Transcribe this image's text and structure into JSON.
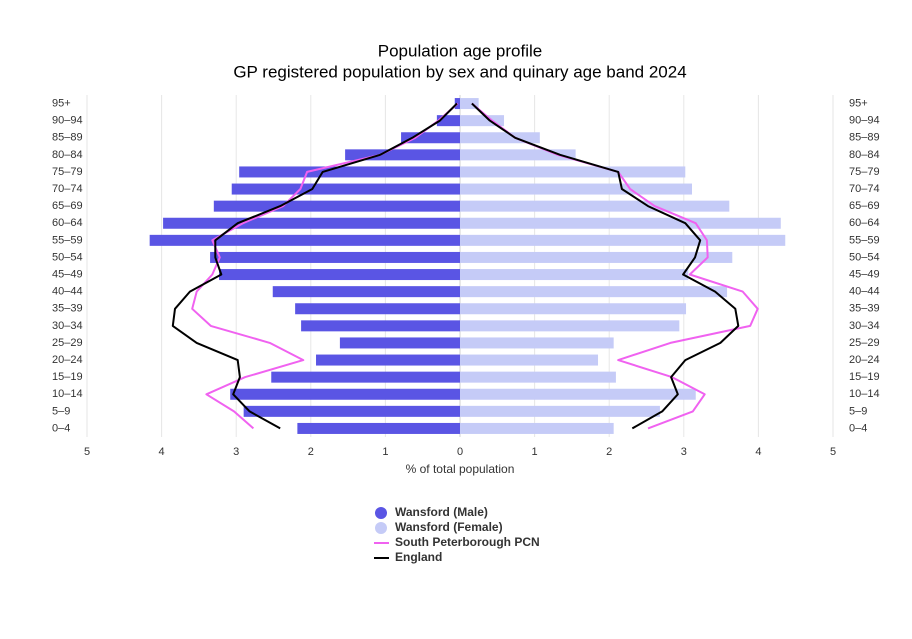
{
  "chart_data": {
    "type": "pyramid",
    "title": "Population age profile",
    "subtitle": "GP registered population by sex and quinary age band 2024",
    "x_label": "% of total population",
    "categories": [
      "0–4",
      "5–9",
      "10–14",
      "15–19",
      "20–24",
      "25–29",
      "30–34",
      "35–39",
      "40–44",
      "45–49",
      "50–54",
      "55–59",
      "60–64",
      "65–69",
      "70–74",
      "75–79",
      "80–84",
      "85–89",
      "90–94",
      "95+"
    ],
    "xlim": [
      -5,
      5
    ],
    "xticks": [
      {
        "value": -5,
        "label": "5"
      },
      {
        "value": -4,
        "label": "4"
      },
      {
        "value": -3,
        "label": "3"
      },
      {
        "value": -2,
        "label": "2"
      },
      {
        "value": -1,
        "label": "1"
      },
      0,
      1,
      2,
      3,
      4,
      5
    ],
    "grid": true,
    "series": [
      {
        "name": "Wansford (Male)",
        "type": "bar",
        "color": "#5a55e4",
        "values": [
          -2.18,
          -2.9,
          -3.08,
          -2.53,
          -1.93,
          -1.61,
          -2.13,
          -2.21,
          -2.51,
          -3.23,
          -3.35,
          -4.16,
          -3.98,
          -3.3,
          -3.06,
          -2.96,
          -1.54,
          -0.79,
          -0.31,
          -0.07
        ]
      },
      {
        "name": "Wansford (Female)",
        "type": "bar",
        "color": "#c5cbf7",
        "values": [
          2.06,
          2.68,
          3.16,
          2.09,
          1.85,
          2.06,
          2.94,
          3.03,
          3.58,
          3.06,
          3.65,
          4.36,
          4.3,
          3.61,
          3.11,
          3.02,
          1.55,
          1.07,
          0.59,
          0.25
        ]
      },
      {
        "name": "South Peterborough PCN",
        "type": "line",
        "color": "#f062f0",
        "male": [
          -2.77,
          -3.03,
          -3.4,
          -2.88,
          -2.1,
          -2.55,
          -3.34,
          -3.59,
          -3.53,
          -3.32,
          -3.22,
          -3.32,
          -2.91,
          -2.37,
          -2.14,
          -2.05,
          -1.07,
          -0.6,
          -0.29,
          -0.03
        ],
        "female": [
          2.52,
          3.12,
          3.28,
          2.84,
          2.12,
          2.82,
          3.89,
          3.99,
          3.79,
          3.08,
          3.32,
          3.31,
          3.16,
          2.61,
          2.28,
          2.12,
          1.31,
          0.74,
          0.43,
          0.16
        ]
      },
      {
        "name": "England",
        "type": "line",
        "color": "#000000",
        "male": [
          -2.41,
          -2.82,
          -3.04,
          -2.95,
          -2.98,
          -3.53,
          -3.85,
          -3.82,
          -3.62,
          -3.2,
          -3.28,
          -3.28,
          -2.98,
          -2.41,
          -1.98,
          -1.84,
          -1.07,
          -0.64,
          -0.27,
          -0.04
        ],
        "female": [
          2.31,
          2.71,
          2.92,
          2.83,
          3.02,
          3.49,
          3.73,
          3.69,
          3.42,
          2.99,
          3.15,
          3.22,
          3.02,
          2.52,
          2.17,
          2.12,
          1.34,
          0.74,
          0.4,
          0.16
        ]
      }
    ]
  }
}
